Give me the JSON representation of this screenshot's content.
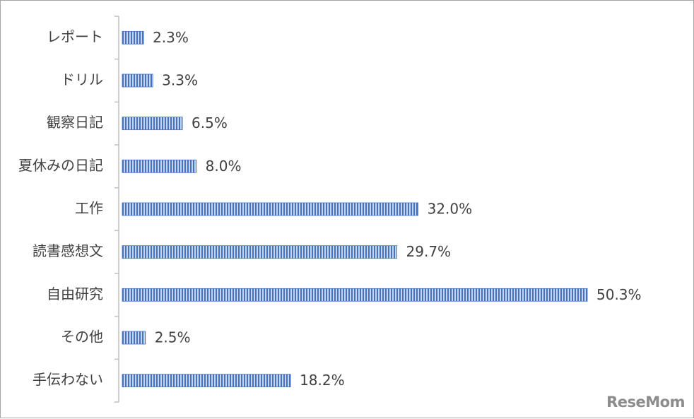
{
  "chart_data": {
    "type": "bar",
    "orientation": "horizontal",
    "categories": [
      "レポート",
      "ドリル",
      "観察日記",
      "夏休みの日記",
      "工作",
      "読書感想文",
      "自由研究",
      "その他",
      "手伝わない"
    ],
    "values": [
      2.3,
      3.3,
      6.5,
      8.0,
      32.0,
      29.7,
      50.3,
      2.5,
      18.2
    ],
    "value_labels": [
      "2.3%",
      "3.3%",
      "6.5%",
      "8.0%",
      "32.0%",
      "29.7%",
      "50.3%",
      "2.5%",
      "18.2%"
    ],
    "unit": "%",
    "xlim": [
      0,
      50.3
    ],
    "grid": false,
    "legend": "none",
    "bar_color": "#4472c4",
    "bar_stripe_color": "#c9d5ee"
  },
  "watermark": {
    "text": "ReseMom"
  }
}
